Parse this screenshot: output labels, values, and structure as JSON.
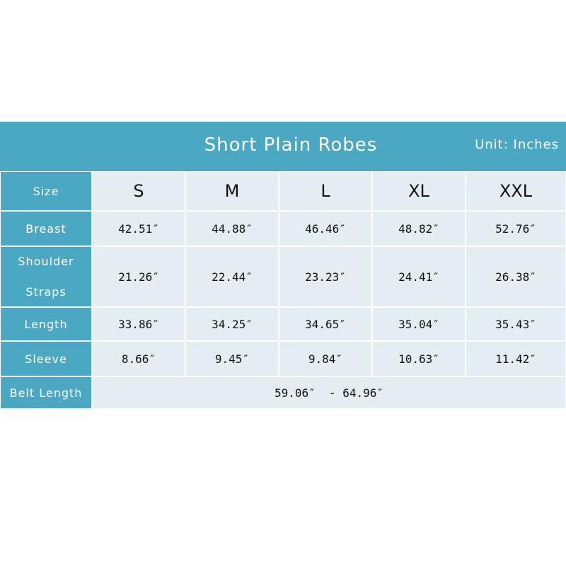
{
  "header": {
    "title": "Short Plain Robes",
    "unit": "Unit: Inches"
  },
  "table": {
    "columns": [
      "Size",
      "S",
      "M",
      "L",
      "XL",
      "XXL"
    ],
    "rows": [
      [
        "Breast",
        "42.51″",
        "44.88″",
        "46.46″",
        "48.82″",
        "52.76″"
      ],
      [
        "Shoulder Straps",
        "21.26″",
        "22.44″",
        "23.23″",
        "24.41″",
        "26.38″"
      ],
      [
        "Length",
        "33.86″",
        "34.25″",
        "34.65″",
        "35.04″",
        "35.43″"
      ],
      [
        "Sleeve",
        "8.66″",
        "9.45″",
        "9.84″",
        "10.63″",
        "11.42″"
      ]
    ],
    "belt": {
      "label": "Belt Length",
      "value": "59.06″  - 64.96″"
    }
  }
}
